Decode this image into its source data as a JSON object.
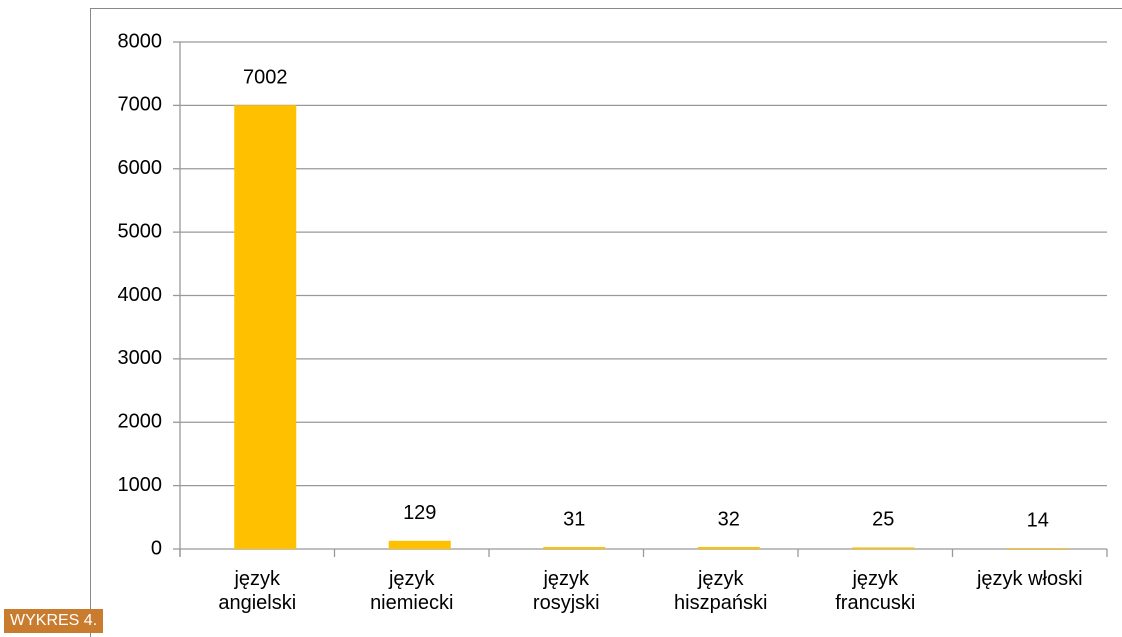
{
  "chart_data": {
    "type": "bar",
    "caption": "Wykres 4.",
    "categories": [
      "język angielski",
      "język niemiecki",
      "język rosyjski",
      "język hiszpański",
      "język francuski",
      "język włoski"
    ],
    "values": [
      7002,
      129,
      31,
      32,
      25,
      14
    ],
    "color": "#ffc000",
    "ylim": [
      0,
      8000
    ],
    "yticks": [
      0,
      1000,
      2000,
      3000,
      4000,
      5000,
      6000,
      7000,
      8000
    ],
    "grid": true
  }
}
